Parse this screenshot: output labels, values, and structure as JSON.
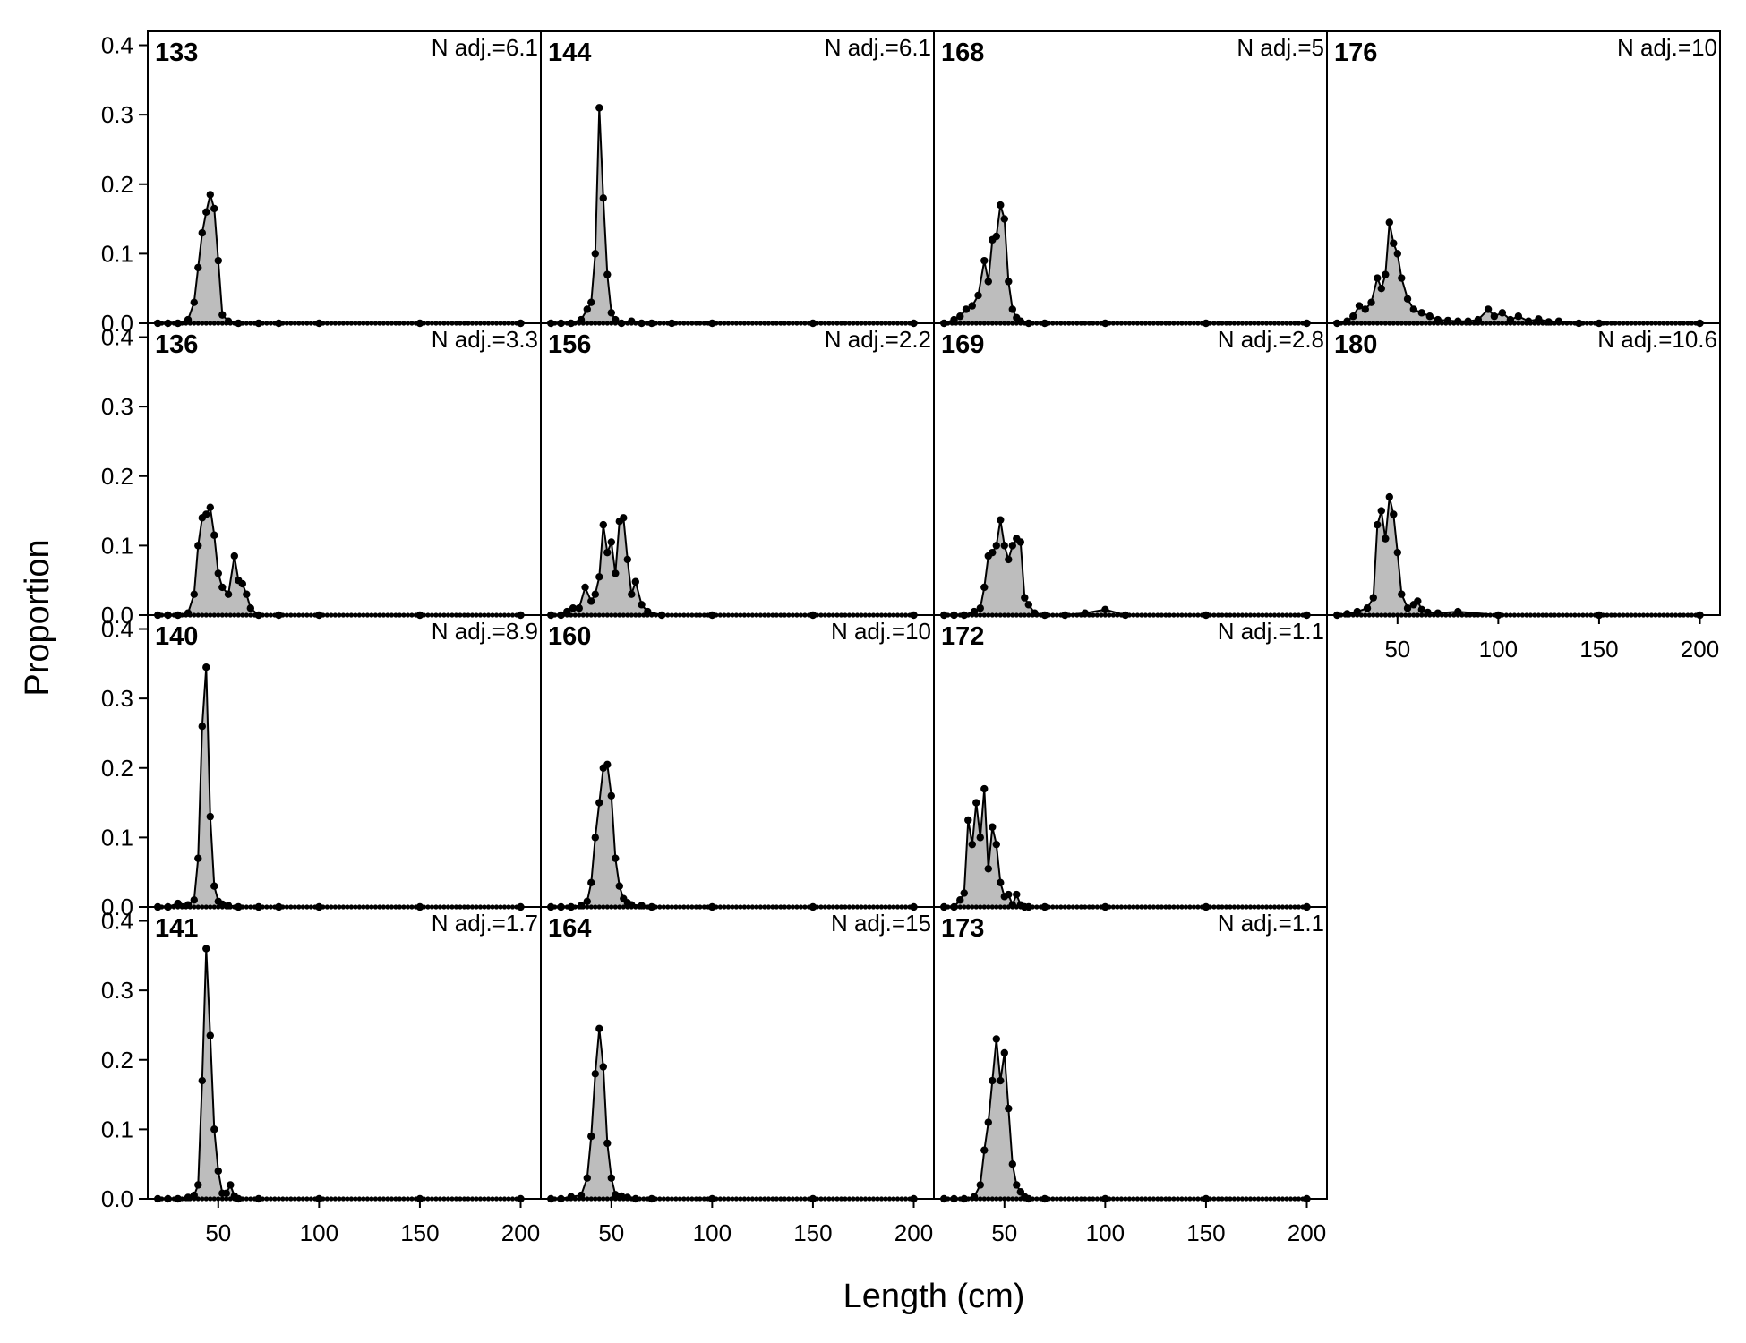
{
  "figure": {
    "xlabel": "Length (cm)",
    "ylabel": "Proportion",
    "y_ticks": [
      "0.0",
      "0.1",
      "0.2",
      "0.3",
      "0.4"
    ],
    "x_ticks": [
      "50",
      "100",
      "150",
      "200"
    ]
  },
  "chart_data": [
    {
      "type": "area",
      "panel": "133",
      "annotation": "N adj.=6.1",
      "xlim": [
        15,
        210
      ],
      "ylim": [
        0,
        0.42
      ],
      "x": [
        20,
        25,
        30,
        35,
        38,
        40,
        42,
        44,
        46,
        48,
        50,
        52,
        55,
        60,
        70,
        80,
        100,
        150,
        200
      ],
      "y": [
        0,
        0,
        0,
        0.005,
        0.03,
        0.08,
        0.13,
        0.16,
        0.185,
        0.165,
        0.09,
        0.012,
        0.003,
        0,
        0,
        0,
        0,
        0,
        0
      ]
    },
    {
      "type": "area",
      "panel": "144",
      "annotation": "N adj.=6.1",
      "xlim": [
        15,
        210
      ],
      "ylim": [
        0,
        0.42
      ],
      "x": [
        20,
        25,
        30,
        35,
        38,
        40,
        42,
        44,
        46,
        48,
        50,
        52,
        55,
        60,
        65,
        70,
        80,
        100,
        150,
        200
      ],
      "y": [
        0,
        0,
        0,
        0.005,
        0.02,
        0.03,
        0.1,
        0.31,
        0.18,
        0.07,
        0.015,
        0.005,
        0,
        0.003,
        0,
        0,
        0,
        0,
        0,
        0
      ]
    },
    {
      "type": "area",
      "panel": "168",
      "annotation": "N adj.=5",
      "xlim": [
        15,
        210
      ],
      "ylim": [
        0,
        0.42
      ],
      "x": [
        20,
        25,
        28,
        31,
        34,
        37,
        40,
        42,
        44,
        46,
        48,
        50,
        52,
        54,
        56,
        58,
        62,
        70,
        100,
        150,
        200
      ],
      "y": [
        0,
        0.005,
        0.01,
        0.02,
        0.025,
        0.04,
        0.09,
        0.06,
        0.12,
        0.125,
        0.17,
        0.15,
        0.06,
        0.02,
        0.008,
        0.003,
        0,
        0,
        0,
        0,
        0
      ]
    },
    {
      "type": "area",
      "panel": "176",
      "annotation": "N adj.=10",
      "xlim": [
        15,
        210
      ],
      "ylim": [
        0,
        0.42
      ],
      "x": [
        20,
        25,
        28,
        31,
        34,
        37,
        40,
        42,
        44,
        46,
        48,
        50,
        52,
        55,
        58,
        62,
        66,
        70,
        75,
        80,
        85,
        90,
        95,
        98,
        102,
        106,
        110,
        115,
        120,
        125,
        130,
        140,
        150,
        200
      ],
      "y": [
        0,
        0.003,
        0.01,
        0.025,
        0.02,
        0.03,
        0.065,
        0.05,
        0.07,
        0.145,
        0.115,
        0.1,
        0.065,
        0.035,
        0.02,
        0.015,
        0.01,
        0.005,
        0.004,
        0.003,
        0.003,
        0.005,
        0.02,
        0.01,
        0.015,
        0.005,
        0.01,
        0.003,
        0.006,
        0.002,
        0.003,
        0,
        0,
        0
      ]
    },
    {
      "type": "area",
      "panel": "136",
      "annotation": "N adj.=3.3",
      "xlim": [
        15,
        210
      ],
      "ylim": [
        0,
        0.42
      ],
      "x": [
        20,
        25,
        30,
        35,
        38,
        40,
        42,
        44,
        46,
        48,
        50,
        52,
        55,
        58,
        60,
        62,
        64,
        66,
        70,
        80,
        100,
        150,
        200
      ],
      "y": [
        0,
        0,
        0,
        0.003,
        0.03,
        0.1,
        0.14,
        0.145,
        0.155,
        0.115,
        0.06,
        0.04,
        0.03,
        0.085,
        0.05,
        0.045,
        0.03,
        0.01,
        0,
        0,
        0,
        0,
        0
      ]
    },
    {
      "type": "area",
      "panel": "156",
      "annotation": "N adj.=2.2",
      "xlim": [
        15,
        210
      ],
      "ylim": [
        0,
        0.42
      ],
      "x": [
        20,
        25,
        28,
        31,
        34,
        37,
        40,
        42,
        44,
        46,
        48,
        50,
        52,
        54,
        56,
        58,
        60,
        62,
        65,
        68,
        75,
        100,
        150,
        200
      ],
      "y": [
        0,
        0,
        0.005,
        0.01,
        0.01,
        0.04,
        0.02,
        0.03,
        0.055,
        0.13,
        0.09,
        0.105,
        0.06,
        0.135,
        0.14,
        0.08,
        0.03,
        0.048,
        0.015,
        0.005,
        0,
        0,
        0,
        0
      ]
    },
    {
      "type": "area",
      "panel": "169",
      "annotation": "N adj.=2.8",
      "xlim": [
        15,
        210
      ],
      "ylim": [
        0,
        0.42
      ],
      "x": [
        20,
        25,
        30,
        35,
        38,
        40,
        42,
        44,
        46,
        48,
        50,
        52,
        54,
        56,
        58,
        60,
        62,
        65,
        70,
        80,
        90,
        100,
        110,
        150,
        200
      ],
      "y": [
        0,
        0,
        0,
        0.005,
        0.01,
        0.04,
        0.085,
        0.09,
        0.1,
        0.137,
        0.1,
        0.08,
        0.1,
        0.11,
        0.105,
        0.025,
        0.015,
        0.003,
        0,
        0,
        0.003,
        0.008,
        0,
        0,
        0
      ]
    },
    {
      "type": "area",
      "panel": "180",
      "annotation": "N adj.=10.6",
      "xlim": [
        15,
        210
      ],
      "ylim": [
        0,
        0.42
      ],
      "x": [
        20,
        25,
        30,
        35,
        38,
        40,
        42,
        44,
        46,
        48,
        50,
        52,
        55,
        58,
        60,
        62,
        65,
        70,
        80,
        100,
        150,
        200
      ],
      "y": [
        0,
        0.002,
        0.005,
        0.01,
        0.025,
        0.13,
        0.15,
        0.11,
        0.17,
        0.145,
        0.09,
        0.03,
        0.01,
        0.015,
        0.02,
        0.008,
        0.004,
        0.003,
        0.005,
        0,
        0,
        0
      ]
    },
    {
      "type": "area",
      "panel": "140",
      "annotation": "N adj.=8.9",
      "xlim": [
        15,
        210
      ],
      "ylim": [
        0,
        0.42
      ],
      "x": [
        20,
        25,
        30,
        35,
        38,
        40,
        42,
        44,
        46,
        48,
        50,
        52,
        55,
        60,
        70,
        80,
        100,
        150,
        200
      ],
      "y": [
        0,
        0,
        0.005,
        0.003,
        0.01,
        0.07,
        0.26,
        0.345,
        0.13,
        0.03,
        0.008,
        0.004,
        0.002,
        0,
        0,
        0,
        0,
        0,
        0
      ]
    },
    {
      "type": "area",
      "panel": "160",
      "annotation": "N adj.=10",
      "xlim": [
        15,
        210
      ],
      "ylim": [
        0,
        0.42
      ],
      "x": [
        20,
        25,
        30,
        35,
        38,
        40,
        42,
        44,
        46,
        48,
        50,
        52,
        54,
        56,
        58,
        60,
        65,
        70,
        100,
        150,
        200
      ],
      "y": [
        0,
        0,
        0,
        0.002,
        0.008,
        0.035,
        0.1,
        0.15,
        0.2,
        0.205,
        0.16,
        0.07,
        0.03,
        0.012,
        0.006,
        0.003,
        0.002,
        0,
        0,
        0,
        0
      ]
    },
    {
      "type": "area",
      "panel": "172",
      "annotation": "N adj.=1.1",
      "xlim": [
        15,
        210
      ],
      "ylim": [
        0,
        0.42
      ],
      "x": [
        20,
        25,
        28,
        30,
        32,
        34,
        36,
        38,
        40,
        42,
        44,
        46,
        48,
        50,
        52,
        54,
        56,
        58,
        60,
        62,
        70,
        100,
        150,
        200
      ],
      "y": [
        0,
        0,
        0.01,
        0.02,
        0.125,
        0.09,
        0.15,
        0.1,
        0.17,
        0.055,
        0.115,
        0.09,
        0.035,
        0.015,
        0.018,
        0.003,
        0.018,
        0.003,
        0,
        0,
        0,
        0,
        0,
        0
      ]
    },
    {
      "type": "area",
      "panel": "141",
      "annotation": "N adj.=1.7",
      "xlim": [
        15,
        210
      ],
      "ylim": [
        0,
        0.42
      ],
      "x": [
        20,
        25,
        30,
        35,
        38,
        40,
        42,
        44,
        46,
        48,
        50,
        52,
        54,
        56,
        58,
        60,
        70,
        100,
        150,
        200
      ],
      "y": [
        0,
        0,
        0,
        0.002,
        0.005,
        0.02,
        0.17,
        0.36,
        0.235,
        0.1,
        0.04,
        0.008,
        0.008,
        0.02,
        0.004,
        0,
        0,
        0,
        0,
        0
      ]
    },
    {
      "type": "area",
      "panel": "164",
      "annotation": "N adj.=15",
      "xlim": [
        15,
        210
      ],
      "ylim": [
        0,
        0.42
      ],
      "x": [
        20,
        25,
        30,
        35,
        38,
        40,
        42,
        44,
        46,
        48,
        50,
        52,
        55,
        58,
        62,
        70,
        100,
        150,
        200
      ],
      "y": [
        0,
        0,
        0.003,
        0.005,
        0.03,
        0.09,
        0.18,
        0.245,
        0.19,
        0.08,
        0.03,
        0.006,
        0.004,
        0.002,
        0,
        0,
        0,
        0,
        0
      ]
    },
    {
      "type": "area",
      "panel": "173",
      "annotation": "N adj.=1.1",
      "xlim": [
        15,
        210
      ],
      "ylim": [
        0,
        0.42
      ],
      "x": [
        20,
        25,
        30,
        35,
        38,
        40,
        42,
        44,
        46,
        48,
        50,
        52,
        54,
        56,
        58,
        60,
        62,
        70,
        100,
        150,
        200
      ],
      "y": [
        0,
        0,
        0,
        0.003,
        0.02,
        0.07,
        0.11,
        0.17,
        0.23,
        0.17,
        0.21,
        0.13,
        0.05,
        0.02,
        0.01,
        0.003,
        0,
        0,
        0,
        0,
        0
      ]
    }
  ]
}
